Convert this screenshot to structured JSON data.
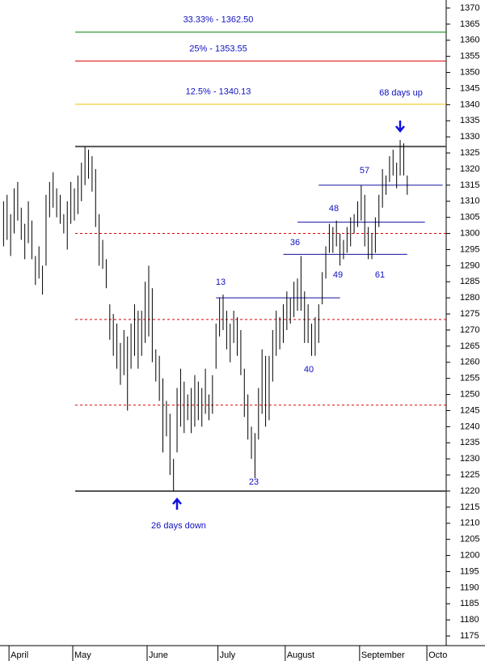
{
  "chart_data": {
    "type": "ohlc",
    "xlim": [
      -1,
      125
    ],
    "ylim": [
      1172,
      1372.5
    ],
    "xticks": [
      {
        "value": 2,
        "label": "April"
      },
      {
        "value": 20,
        "label": "May"
      },
      {
        "value": 41,
        "label": "June"
      },
      {
        "value": 61,
        "label": "July"
      },
      {
        "value": 80,
        "label": "August"
      },
      {
        "value": 101,
        "label": "September"
      },
      {
        "value": 120,
        "label": "Octo"
      }
    ],
    "yticks": [
      1175,
      1180,
      1185,
      1190,
      1195,
      1200,
      1205,
      1210,
      1215,
      1220,
      1225,
      1230,
      1235,
      1240,
      1245,
      1250,
      1255,
      1260,
      1265,
      1270,
      1275,
      1280,
      1285,
      1290,
      1295,
      1300,
      1305,
      1310,
      1315,
      1320,
      1325,
      1330,
      1335,
      1340,
      1345,
      1350,
      1355,
      1360,
      1365,
      1370
    ],
    "color": "#000000",
    "high": [
      1310,
      1312,
      1306,
      1314,
      1316,
      1308,
      1303,
      1310,
      1304,
      1293,
      1296,
      1290,
      1312,
      1316,
      1319,
      1314,
      1312,
      1306,
      1310,
      1316,
      1314,
      1318,
      1322,
      1327,
      1326,
      1324,
      1320,
      1306,
      1298,
      1292,
      1278,
      1275,
      1272,
      1266,
      1270,
      1268,
      1272,
      1278,
      1276,
      1276,
      1285,
      1290,
      1283,
      1264,
      1262,
      1255,
      1248,
      1244,
      1230,
      1252,
      1258,
      1254,
      1250,
      1252,
      1256,
      1254,
      1252,
      1258,
      1250,
      1256,
      1272,
      1280,
      1281,
      1276,
      1272,
      1276,
      1274,
      1270,
      1258,
      1250,
      1240,
      1238,
      1252,
      1264,
      1262,
      1262,
      1270,
      1276,
      1274,
      1278,
      1282,
      1280,
      1285,
      1286,
      1293,
      1282,
      1278,
      1272,
      1274,
      1278,
      1288,
      1296,
      1303,
      1302,
      1304,
      1300,
      1298,
      1302,
      1305,
      1306,
      1310,
      1315,
      1312,
      1302,
      1300,
      1305,
      1312,
      1320,
      1318,
      1324,
      1326,
      1322,
      1329,
      1328,
      1318
    ],
    "low": [
      1296,
      1298,
      1293,
      1300,
      1304,
      1298,
      1292,
      1297,
      1292,
      1284,
      1286,
      1281,
      1290,
      1305,
      1308,
      1305,
      1303,
      1300,
      1295,
      1303,
      1304,
      1306,
      1310,
      1315,
      1317,
      1313,
      1302,
      1290,
      1289,
      1283,
      1267,
      1262,
      1258,
      1253,
      1256,
      1245,
      1258,
      1262,
      1258,
      1262,
      1266,
      1268,
      1260,
      1254,
      1248,
      1232,
      1237,
      1225,
      1220,
      1232,
      1240,
      1238,
      1242,
      1238,
      1240,
      1242,
      1240,
      1244,
      1242,
      1244,
      1258,
      1268,
      1270,
      1264,
      1260,
      1266,
      1262,
      1256,
      1243,
      1236,
      1230,
      1224,
      1236,
      1244,
      1240,
      1242,
      1254,
      1262,
      1264,
      1266,
      1270,
      1272,
      1274,
      1276,
      1276,
      1266,
      1266,
      1262,
      1262,
      1266,
      1278,
      1286,
      1294,
      1294,
      1296,
      1290,
      1292,
      1294,
      1296,
      1300,
      1302,
      1304,
      1296,
      1292,
      1292,
      1294,
      1302,
      1308,
      1312,
      1316,
      1318,
      1314,
      1318,
      1318,
      1312
    ],
    "fib_levels": [
      {
        "label": "33.33% - 1362.50",
        "value": 1362.5,
        "color": "#008000"
      },
      {
        "label": "25% - 1353.55",
        "value": 1353.55,
        "color": "#e00000"
      },
      {
        "label": "12.5% - 1340.13",
        "value": 1340.13,
        "color": "#f0c000"
      }
    ],
    "range_lines": [
      1327,
      1220
    ],
    "dashed_levels": [
      1300,
      1273.3,
      1246.7
    ],
    "trend_lines": [
      {
        "value": 1280,
        "from": 60,
        "to": 95
      },
      {
        "value": 1293.5,
        "from": 79,
        "to": 114
      },
      {
        "value": 1303.5,
        "from": 83,
        "to": 119
      },
      {
        "value": 1315,
        "from": 89,
        "to": 124
      }
    ],
    "annotations": [
      "13",
      "36",
      "48",
      "57",
      "40",
      "49",
      "61",
      "23",
      "26 days down",
      "68 days up"
    ]
  }
}
